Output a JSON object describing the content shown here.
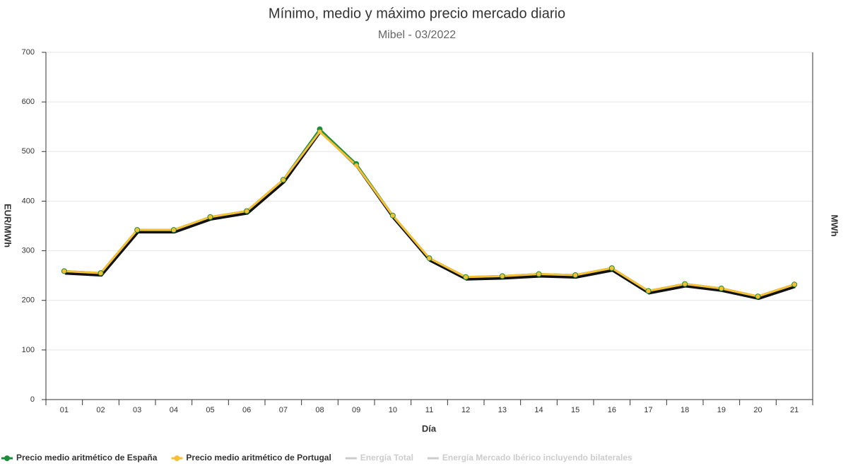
{
  "chart_data": {
    "type": "line",
    "title": "Mínimo, medio y máximo precio mercado diario",
    "subtitle": "Mibel - 03/2022",
    "x_label": "Día",
    "y_label": "EUR/MWh",
    "y2_label": "MWh",
    "categories": [
      "01",
      "02",
      "03",
      "04",
      "05",
      "06",
      "07",
      "08",
      "09",
      "10",
      "11",
      "12",
      "13",
      "14",
      "15",
      "16",
      "17",
      "18",
      "19",
      "20",
      "21"
    ],
    "series": [
      {
        "name": "Precio medio aritmético de España",
        "color": "#1e8c3a",
        "values": [
          259,
          255,
          342,
          342,
          368,
          380,
          443,
          545,
          475,
          371,
          285,
          247,
          249,
          253,
          251,
          265,
          219,
          233,
          224,
          208,
          232
        ]
      },
      {
        "name": "Precio medio aritmético de Portugal",
        "color": "#f5c036",
        "values": [
          259,
          255,
          342,
          342,
          368,
          380,
          443,
          540,
          472,
          371,
          285,
          247,
          249,
          253,
          251,
          265,
          219,
          233,
          224,
          208,
          232
        ]
      }
    ],
    "hidden_legend": [
      "Energía Total",
      "Energía Mercado Ibérico incluyendo bilaterales"
    ],
    "hidden_color": "#cccccc",
    "ylim": [
      0,
      700
    ],
    "yticks": [
      0,
      100,
      200,
      300,
      400,
      500,
      600,
      700
    ],
    "grid": true
  }
}
